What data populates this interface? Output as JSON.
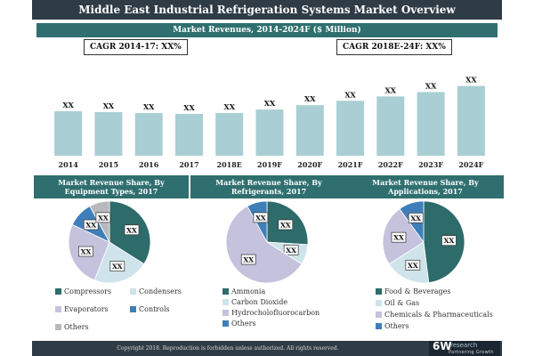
{
  "title": "Middle East Industrial Refrigeration Systems Market Overview",
  "colors": {
    "bar": "#a9ced3",
    "header_dark": "#2f3b45",
    "header_teal": "#2f6f6f",
    "pie_teal": "#2e6b6b",
    "pie_light": "#cfe4ea",
    "pie_lavender": "#c5c2dd",
    "pie_blue": "#3f7fb9",
    "pie_gray": "#b7b9bd"
  },
  "chart_data": [
    {
      "type": "bar",
      "title": "Market Revenues, 2014-2024F ($ Million)",
      "categories": [
        "2014",
        "2015",
        "2016",
        "2017",
        "2018E",
        "2019F",
        "2020F",
        "2021F",
        "2022F",
        "2023F",
        "2024F"
      ],
      "values": [
        51,
        50,
        49,
        48,
        49,
        53,
        58,
        63,
        68,
        73,
        80
      ],
      "value_labels": [
        "XX",
        "XX",
        "XX",
        "XX",
        "XX",
        "XX",
        "XX",
        "XX",
        "XX",
        "XX",
        "XX"
      ],
      "annotations": [
        "CAGR 2014-17: XX%",
        "CAGR 2018E-24F: XX%"
      ],
      "ylim": [
        0,
        100
      ],
      "grid": false
    },
    {
      "type": "pie",
      "title": "Market Revenue Share, By Equipment Types, 2017",
      "labels": [
        "Compressors",
        "Condensers",
        "Evaporators",
        "Controls",
        "Others"
      ],
      "values": [
        34,
        22,
        26,
        10,
        8
      ],
      "value_labels": [
        "XX",
        "XX",
        "XX",
        "XX",
        "XX"
      ],
      "colors": [
        "#2e6b6b",
        "#cfe4ea",
        "#c5c2dd",
        "#3f7fb9",
        "#b7b9bd"
      ],
      "legend": "bottom"
    },
    {
      "type": "pie",
      "title": "Market Revenue Share, By Refrigerants, 2017",
      "labels": [
        "Ammonia",
        "Carbon Dioxide",
        "Hydrocholofluorocarbon",
        "Others"
      ],
      "values": [
        26,
        8,
        58,
        8
      ],
      "value_labels": [
        "XX",
        "XX",
        "XX",
        "XX"
      ],
      "colors": [
        "#2e6b6b",
        "#cfe4ea",
        "#c5c2dd",
        "#3f7fb9"
      ],
      "legend": "bottom"
    },
    {
      "type": "pie",
      "title": "Market Revenue Share, By Applications, 2017",
      "labels": [
        "Food & Beverages",
        "Oil & Gas",
        "Chemicals & Pharmaceuticals",
        "Others"
      ],
      "values": [
        48,
        18,
        24,
        10
      ],
      "value_labels": [
        "XX",
        "XX",
        "XX",
        "XX"
      ],
      "colors": [
        "#2e6b6b",
        "#cfe4ea",
        "#c5c2dd",
        "#3f7fb9"
      ],
      "legend": "bottom"
    }
  ],
  "footer": {
    "copyright": "Copyright 2018. Reproduction is forbidden unless authorized. All rights reserved.",
    "logo_main": "6W",
    "logo_sub": "research",
    "logo_tagline": "Partnering Growth"
  }
}
